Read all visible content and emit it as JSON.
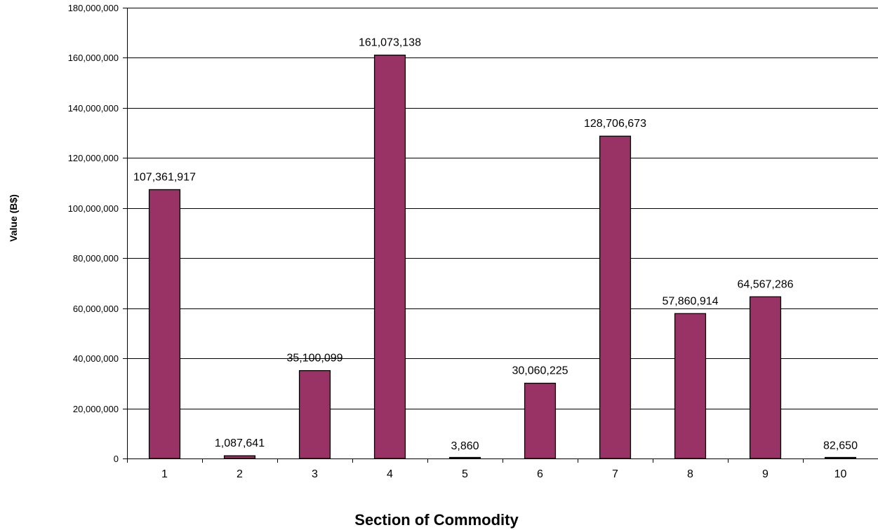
{
  "chart_data": {
    "type": "bar",
    "categories": [
      "1",
      "2",
      "3",
      "4",
      "5",
      "6",
      "7",
      "8",
      "9",
      "10"
    ],
    "values": [
      107361917,
      1087641,
      35100099,
      161073138,
      3860,
      30060225,
      128706673,
      57860914,
      64567286,
      82650
    ],
    "data_labels": [
      "107,361,917",
      "1,087,641",
      "35,100,099",
      "161,073,138",
      "3,860",
      "30,060,225",
      "128,706,673",
      "57,860,914",
      "64,567,286",
      "82,650"
    ],
    "xlabel": "Section of Commodity",
    "ylabel": "Value (B$)",
    "ylim": [
      0,
      180000000
    ],
    "y_ticks": [
      0,
      20000000,
      40000000,
      60000000,
      80000000,
      100000000,
      120000000,
      140000000,
      160000000,
      180000000
    ],
    "y_tick_labels": [
      "0",
      "20,000,000",
      "40,000,000",
      "60,000,000",
      "80,000,000",
      "100,000,000",
      "120,000,000",
      "140,000,000",
      "160,000,000",
      "180,000,000"
    ],
    "grid": true,
    "legend": "none",
    "colors": {
      "bar_fill": "#993366",
      "bar_stroke": "#000000",
      "grid": "#000000",
      "axis": "#000000"
    }
  }
}
